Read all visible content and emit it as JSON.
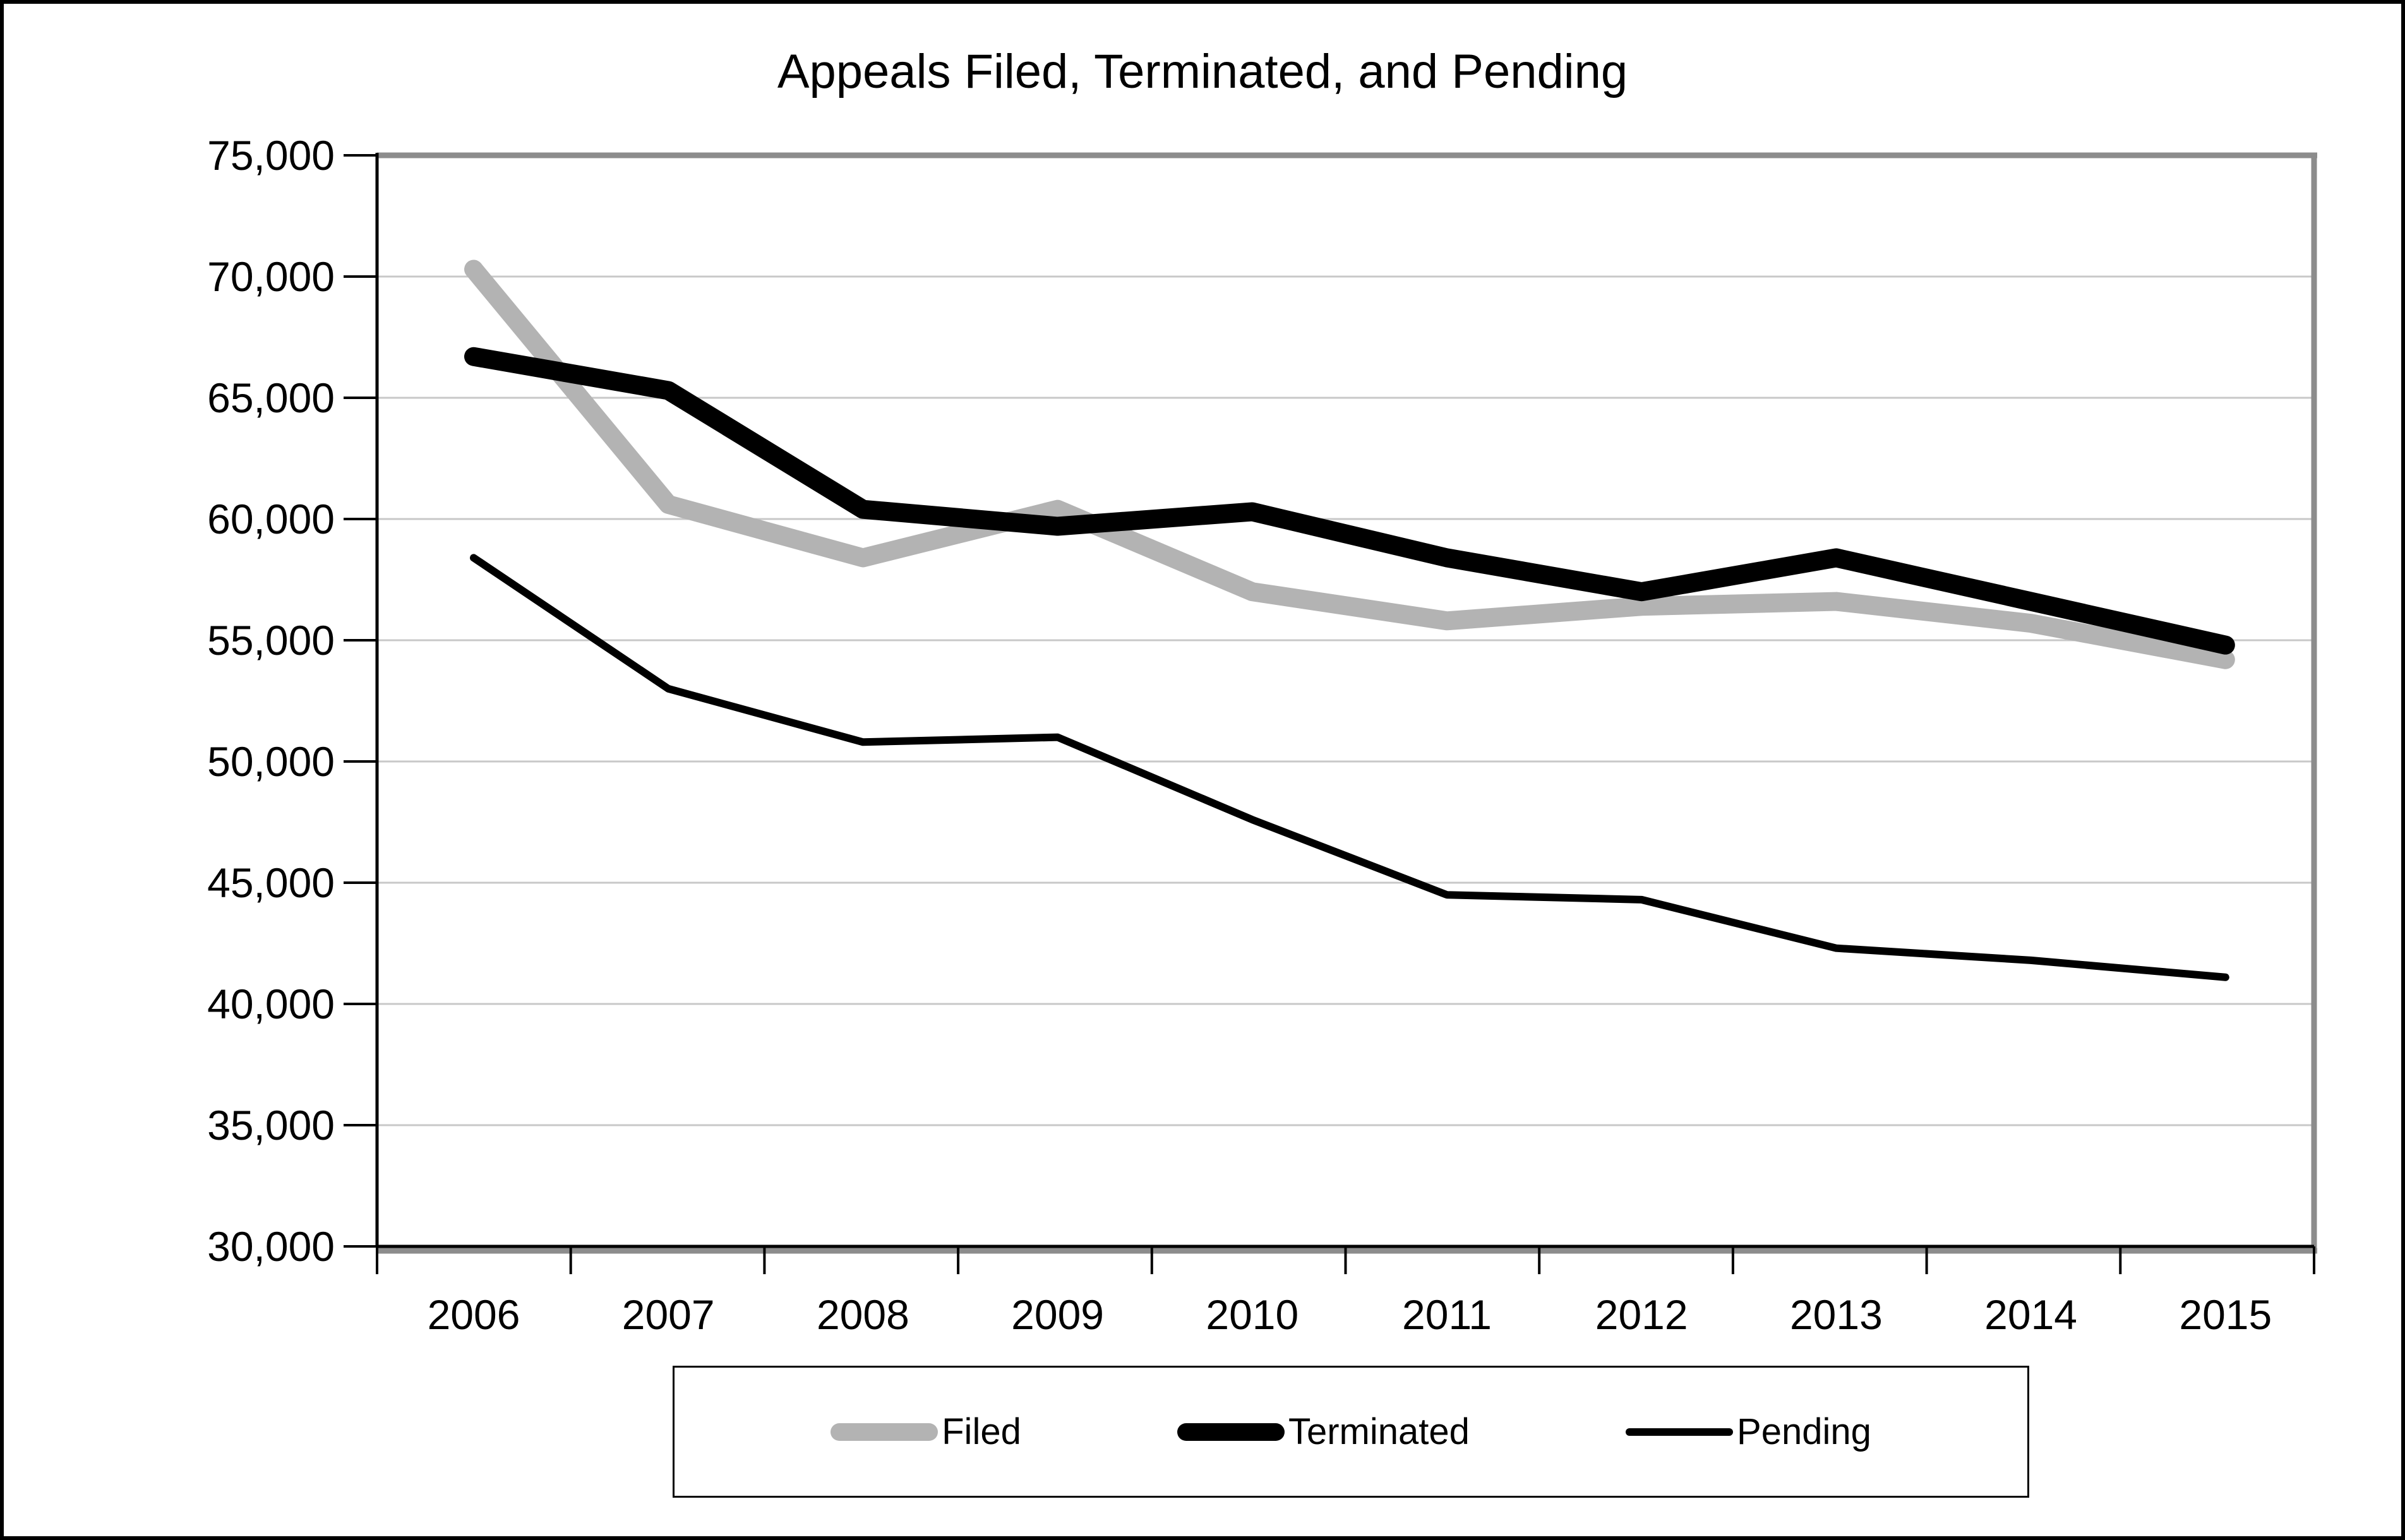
{
  "title": "Appeals Filed, Terminated, and Pending",
  "chart_data": {
    "type": "line",
    "title": "Appeals Filed, Terminated, and Pending",
    "categories": [
      "2006",
      "2007",
      "2008",
      "2009",
      "2010",
      "2011",
      "2012",
      "2013",
      "2014",
      "2015"
    ],
    "series": [
      {
        "name": "Filed",
        "color": "#b3b3b3",
        "stroke_width": 30,
        "values": [
          70300,
          60600,
          58400,
          60400,
          57000,
          55800,
          56400,
          56600,
          55700,
          54200
        ]
      },
      {
        "name": "Terminated",
        "color": "#000000",
        "stroke_width": 30,
        "values": [
          66700,
          65300,
          60400,
          59700,
          60300,
          58400,
          57000,
          58400,
          56600,
          54800
        ]
      },
      {
        "name": "Pending",
        "color": "#000000",
        "stroke_width": 12,
        "values": [
          58400,
          53000,
          50800,
          51000,
          47600,
          44500,
          44300,
          42300,
          41800,
          41100
        ]
      }
    ],
    "xlabel": "",
    "ylabel": "",
    "ylim": [
      30000,
      75000
    ],
    "ytick_step": 5000,
    "y_tick_labels": [
      "30,000",
      "35,000",
      "40,000",
      "45,000",
      "50,000",
      "55,000",
      "60,000",
      "65,000",
      "70,000",
      "75,000"
    ],
    "grid": "horizontal",
    "legend_position": "bottom-center",
    "gridline_color": "#c8c8c8",
    "frame_color": "#8c8c8c",
    "axis_color": "#000000"
  }
}
